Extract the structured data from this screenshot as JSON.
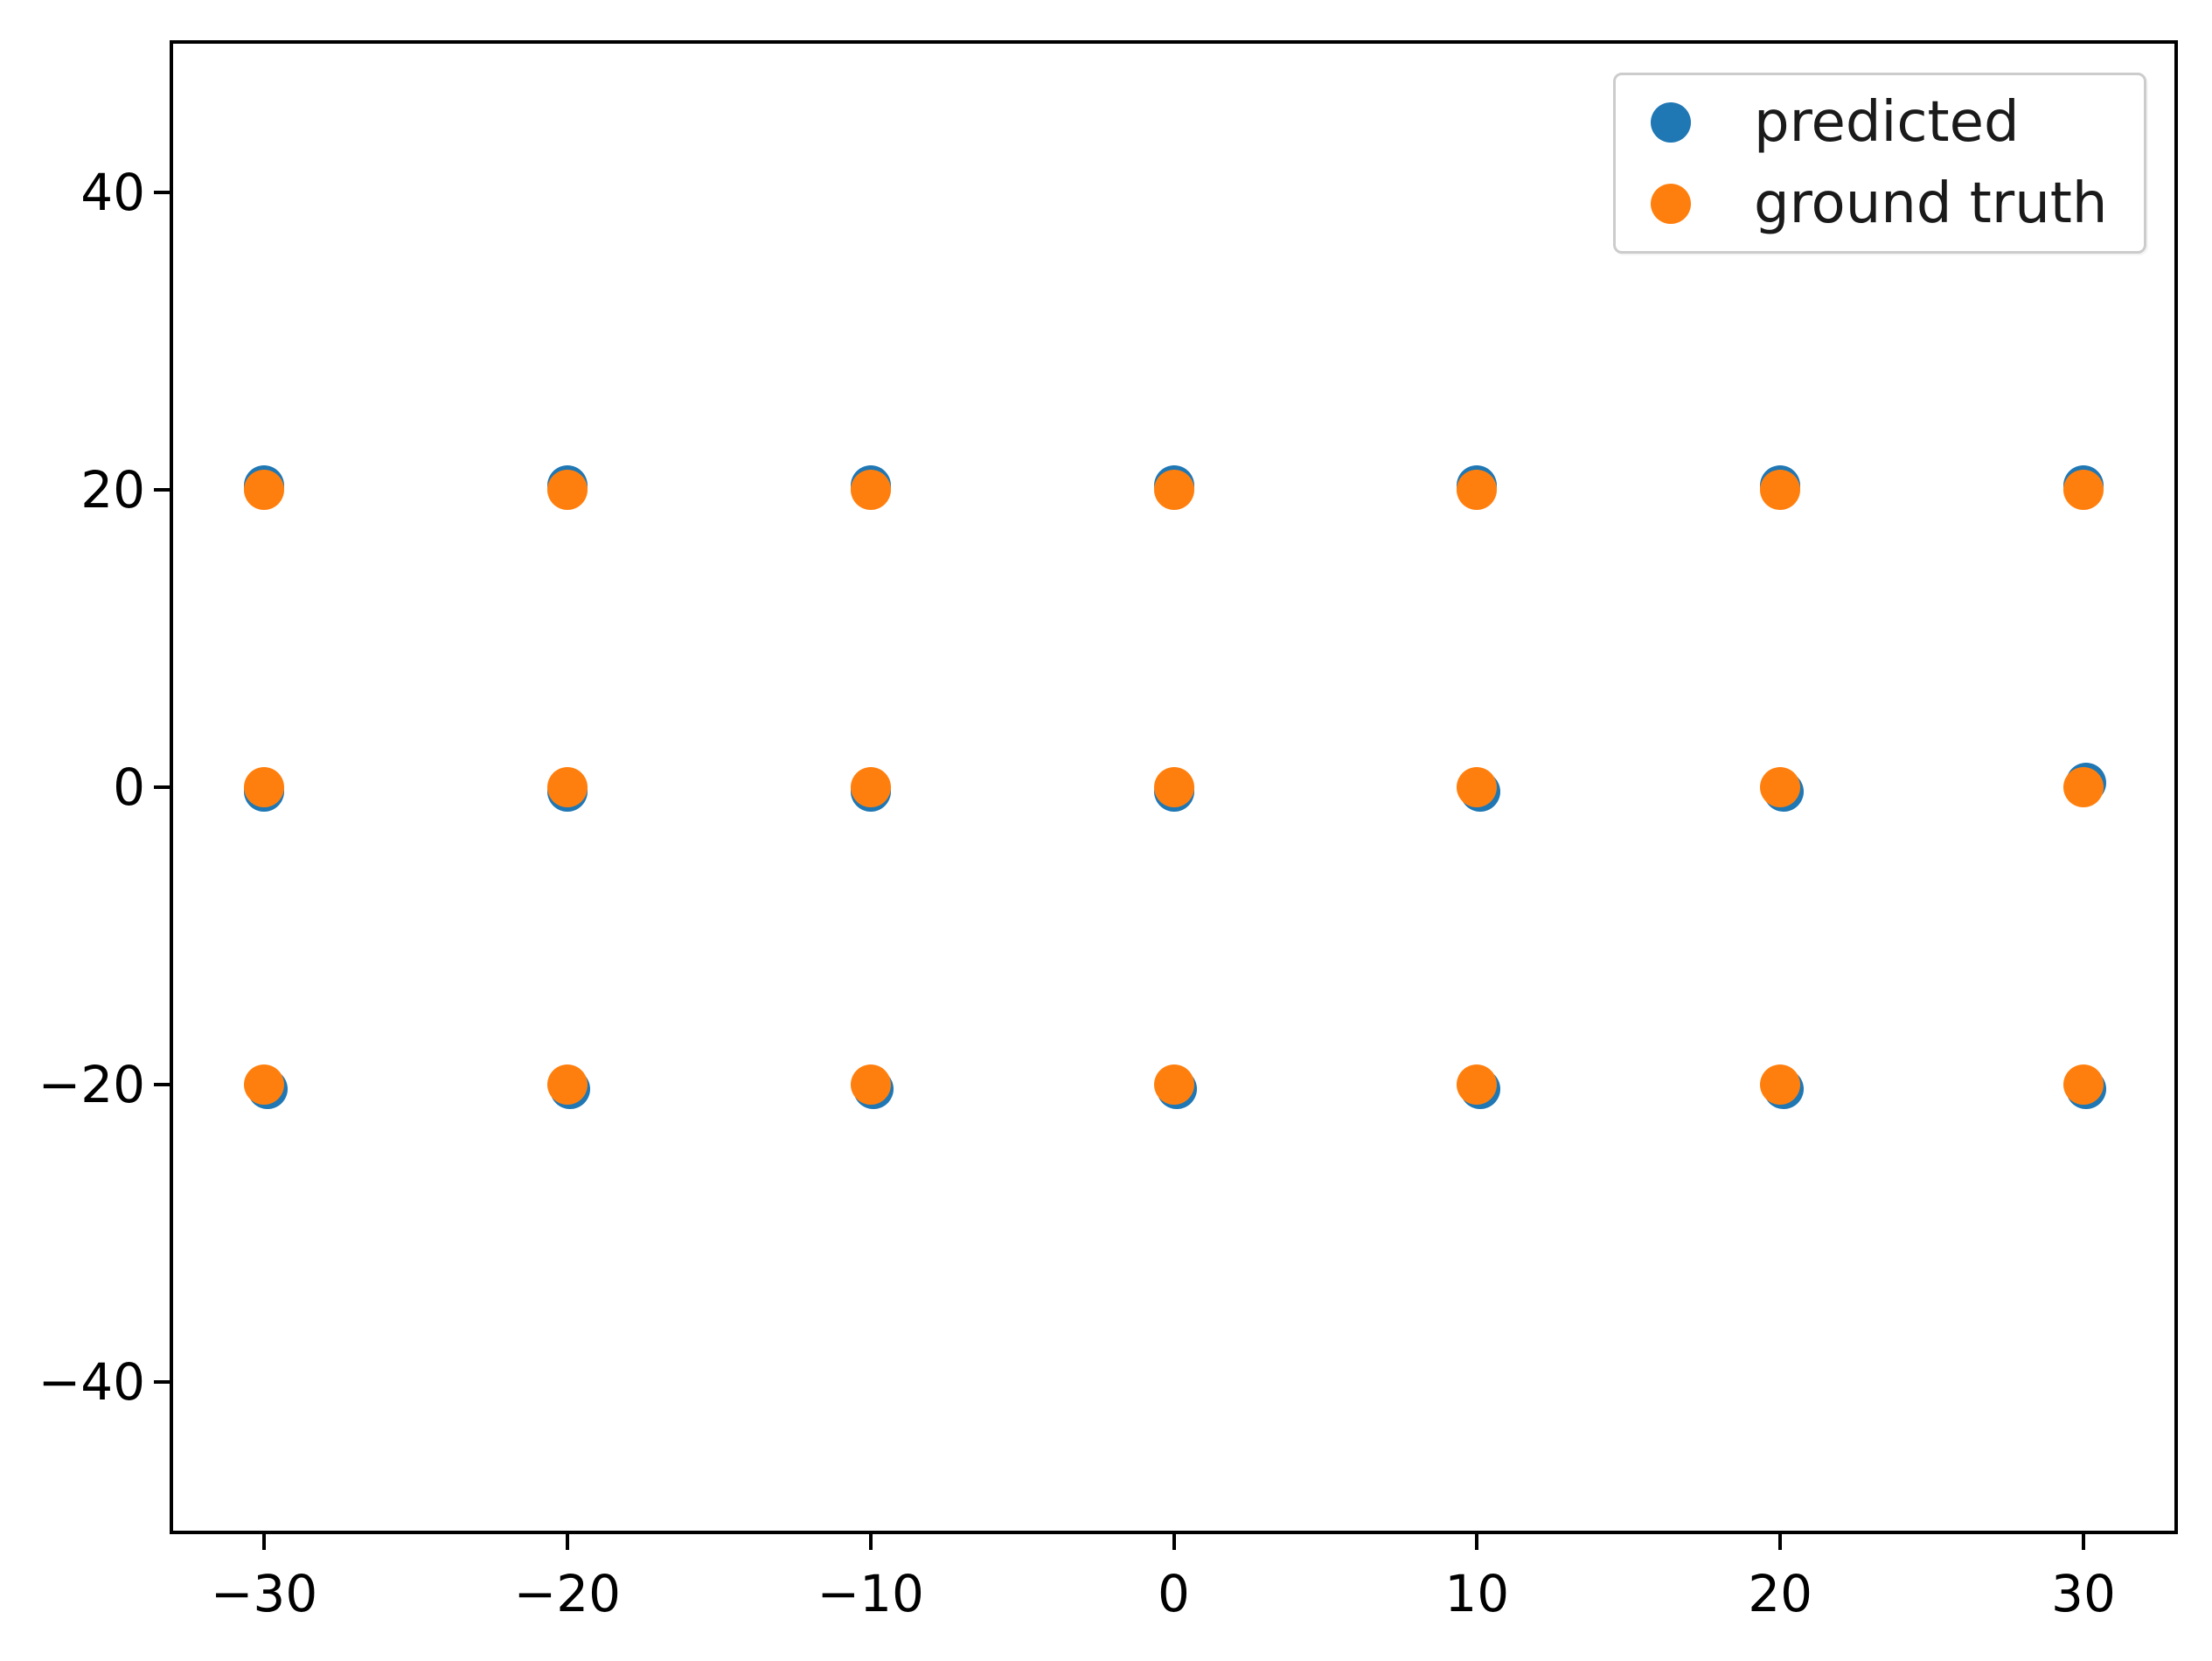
{
  "chart_data": {
    "type": "scatter",
    "title": "",
    "xlabel": "",
    "ylabel": "",
    "xlim": [
      -33,
      33
    ],
    "ylim": [
      -50,
      50
    ],
    "x_ticks": [
      -30,
      -20,
      -10,
      0,
      10,
      20,
      30
    ],
    "y_ticks": [
      -40,
      -20,
      0,
      20,
      40
    ],
    "grid": false,
    "legend_position": "upper right",
    "marker_diameter_px": 46,
    "series": [
      {
        "name": "predicted",
        "color": "#1f77b4",
        "points": [
          [
            -30,
            20.3
          ],
          [
            -20,
            20.3
          ],
          [
            -10,
            20.3
          ],
          [
            0,
            20.3
          ],
          [
            10,
            20.3
          ],
          [
            20,
            20.3
          ],
          [
            30,
            20.3
          ],
          [
            -30,
            -0.3
          ],
          [
            -20,
            -0.3
          ],
          [
            -10,
            -0.3
          ],
          [
            0,
            -0.3
          ],
          [
            10.1,
            -0.3
          ],
          [
            20.1,
            -0.3
          ],
          [
            30.1,
            0.3
          ],
          [
            -29.9,
            -20.3
          ],
          [
            -19.9,
            -20.3
          ],
          [
            -9.9,
            -20.3
          ],
          [
            0.1,
            -20.3
          ],
          [
            10.1,
            -20.3
          ],
          [
            20.1,
            -20.3
          ],
          [
            30.1,
            -20.3
          ]
        ]
      },
      {
        "name": "ground truth",
        "color": "#ff7f0e",
        "points": [
          [
            -30,
            20
          ],
          [
            -20,
            20
          ],
          [
            -10,
            20
          ],
          [
            0,
            20
          ],
          [
            10,
            20
          ],
          [
            20,
            20
          ],
          [
            30,
            20
          ],
          [
            -30,
            0
          ],
          [
            -20,
            0
          ],
          [
            -10,
            0
          ],
          [
            0,
            0
          ],
          [
            10,
            0
          ],
          [
            20,
            0
          ],
          [
            30,
            0
          ],
          [
            -30,
            -20
          ],
          [
            -20,
            -20
          ],
          [
            -10,
            -20
          ],
          [
            0,
            -20
          ],
          [
            10,
            -20
          ],
          [
            20,
            -20
          ],
          [
            30,
            -20
          ]
        ]
      }
    ]
  },
  "legend": {
    "items": [
      {
        "label": "predicted",
        "color": "#1f77b4"
      },
      {
        "label": "ground truth",
        "color": "#ff7f0e"
      }
    ]
  },
  "axes": {
    "spine_color": "#000000",
    "tick_label_color": "#000000"
  }
}
